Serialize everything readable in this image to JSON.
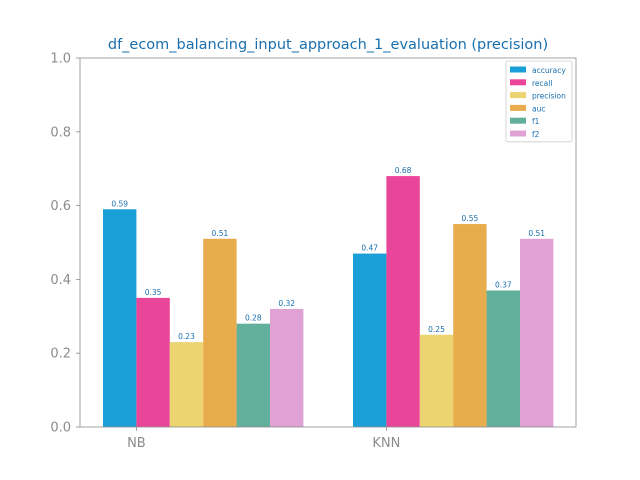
{
  "chart_data": {
    "type": "bar",
    "title": "df_ecom_balancing_input_approach_1_evaluation (precision)",
    "xlabel": "",
    "ylabel": "",
    "ylim": [
      0,
      1.0
    ],
    "yticks": [
      "0.0",
      "0.2",
      "0.4",
      "0.6",
      "0.8",
      "1.0"
    ],
    "grid": false,
    "legend_position": "top-right",
    "categories": [
      "NB",
      "KNN"
    ],
    "series": [
      {
        "name": "accuracy",
        "color": "#1a9fd8",
        "values": [
          0.59,
          0.47
        ],
        "labels": [
          "0.59",
          "0.47"
        ]
      },
      {
        "name": "recall",
        "color": "#ea4699",
        "values": [
          0.35,
          0.68
        ],
        "labels": [
          "0.35",
          "0.68"
        ]
      },
      {
        "name": "precision",
        "color": "#ecd471",
        "values": [
          0.23,
          0.25
        ],
        "labels": [
          "0.23",
          "0.25"
        ]
      },
      {
        "name": "auc",
        "color": "#e8ac4c",
        "values": [
          0.51,
          0.55
        ],
        "labels": [
          "0.51",
          "0.55"
        ]
      },
      {
        "name": "f1",
        "color": "#62b09b",
        "values": [
          0.28,
          0.37
        ],
        "labels": [
          "0.28",
          "0.37"
        ]
      },
      {
        "name": "f2",
        "color": "#e0a1d4",
        "values": [
          0.32,
          0.51
        ],
        "labels": [
          "0.32",
          "0.51"
        ]
      }
    ]
  },
  "colors": {
    "title": "#1a6fae",
    "axis": "#8c8c8c",
    "data_label": "#1a6fae",
    "legend_text": "#1a6fae"
  }
}
